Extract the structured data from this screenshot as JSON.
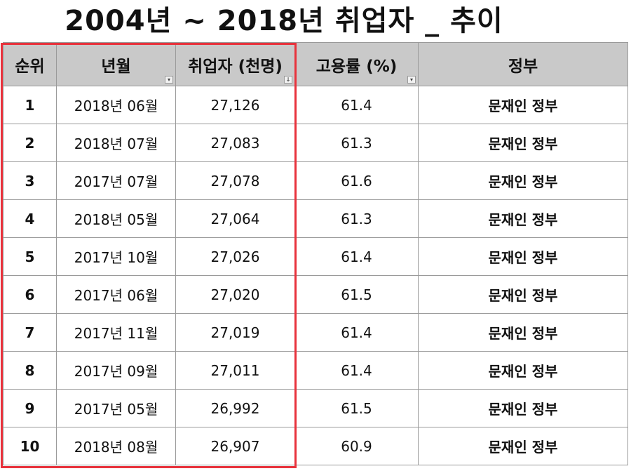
{
  "title": "2004년 ~ 2018년 취업자 _ 추이",
  "columns": [
    "순위",
    "년월",
    "취업자 (천명)",
    "고용률 (%)",
    "정부"
  ],
  "filter_icons": {
    "date": "filter-funnel-icon",
    "employed": "sort-desc-icon",
    "rate": "dropdown-arrow-icon"
  },
  "highlight_color": "#e8323c",
  "rows": [
    {
      "rank": "1",
      "date": "2018년 06월",
      "employed": "27,126",
      "rate": "61.4",
      "gov": "문재인 정부"
    },
    {
      "rank": "2",
      "date": "2018년 07월",
      "employed": "27,083",
      "rate": "61.3",
      "gov": "문재인 정부"
    },
    {
      "rank": "3",
      "date": "2017년 07월",
      "employed": "27,078",
      "rate": "61.6",
      "gov": "문재인 정부"
    },
    {
      "rank": "4",
      "date": "2018년 05월",
      "employed": "27,064",
      "rate": "61.3",
      "gov": "문재인 정부"
    },
    {
      "rank": "5",
      "date": "2017년 10월",
      "employed": "27,026",
      "rate": "61.4",
      "gov": "문재인 정부"
    },
    {
      "rank": "6",
      "date": "2017년 06월",
      "employed": "27,020",
      "rate": "61.5",
      "gov": "문재인 정부"
    },
    {
      "rank": "7",
      "date": "2017년 11월",
      "employed": "27,019",
      "rate": "61.4",
      "gov": "문재인 정부"
    },
    {
      "rank": "8",
      "date": "2017년 09월",
      "employed": "27,011",
      "rate": "61.4",
      "gov": "문재인 정부"
    },
    {
      "rank": "9",
      "date": "2017년 05월",
      "employed": "26,992",
      "rate": "61.5",
      "gov": "문재인 정부"
    },
    {
      "rank": "10",
      "date": "2018년 08월",
      "employed": "26,907",
      "rate": "60.9",
      "gov": "문재인 정부"
    }
  ]
}
